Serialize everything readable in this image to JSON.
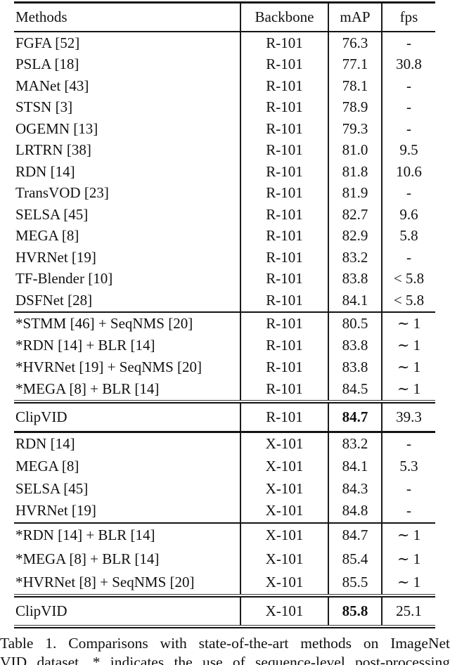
{
  "document": {
    "background": "#ffffff",
    "text_color": "#111111",
    "rule_color": "#141414"
  },
  "table": {
    "headers": {
      "methods": "Methods",
      "backbone": "Backbone",
      "map": "mAP",
      "fps": "fps"
    },
    "sections": [
      {
        "name": "r101-baselines",
        "rule_after": "single",
        "rows": [
          {
            "method": "FGFA [52]",
            "backbone": "R-101",
            "map": "76.3",
            "fps": "-"
          },
          {
            "method": "PSLA [18]",
            "backbone": "R-101",
            "map": "77.1",
            "fps": "30.8"
          },
          {
            "method": "MANet [43]",
            "backbone": "R-101",
            "map": "78.1",
            "fps": "-"
          },
          {
            "method": "STSN [3]",
            "backbone": "R-101",
            "map": "78.9",
            "fps": "-"
          },
          {
            "method": "OGEMN [13]",
            "backbone": "R-101",
            "map": "79.3",
            "fps": "-"
          },
          {
            "method": "LRTRN [38]",
            "backbone": "R-101",
            "map": "81.0",
            "fps": "9.5"
          },
          {
            "method": "RDN [14]",
            "backbone": "R-101",
            "map": "81.8",
            "fps": "10.6"
          },
          {
            "method": "TransVOD [23]",
            "backbone": "R-101",
            "map": "81.9",
            "fps": "-"
          },
          {
            "method": "SELSA [45]",
            "backbone": "R-101",
            "map": "82.7",
            "fps": "9.6"
          },
          {
            "method": "MEGA [8]",
            "backbone": "R-101",
            "map": "82.9",
            "fps": "5.8"
          },
          {
            "method": "HVRNet [19]",
            "backbone": "R-101",
            "map": "83.2",
            "fps": "-"
          },
          {
            "method": "TF-Blender [10]",
            "backbone": "R-101",
            "map": "83.8",
            "fps": "< 5.8"
          },
          {
            "method": "DSFNet [28]",
            "backbone": "R-101",
            "map": "84.1",
            "fps": "< 5.8"
          }
        ]
      },
      {
        "name": "r101-postprocessing",
        "rule_after": "double",
        "rows": [
          {
            "method": "*STMM [46] + SeqNMS [20]",
            "backbone": "R-101",
            "map": "80.5",
            "fps": "∼ 1"
          },
          {
            "method": "*RDN [14] + BLR [14]",
            "backbone": "R-101",
            "map": "83.8",
            "fps": "∼ 1"
          },
          {
            "method": "*HVRNet [19] + SeqNMS [20]",
            "backbone": "R-101",
            "map": "83.8",
            "fps": "∼ 1"
          },
          {
            "method": "*MEGA [8] + BLR [14]",
            "backbone": "R-101",
            "map": "84.5",
            "fps": "∼ 1"
          }
        ]
      },
      {
        "name": "clipvid-r101",
        "rule_after": "single",
        "rows": [
          {
            "method": "ClipVID",
            "backbone": "R-101",
            "map": "84.7",
            "fps": "39.3",
            "map_bold": true
          }
        ]
      },
      {
        "name": "x101-baselines",
        "rule_after": "single",
        "rows": [
          {
            "method": "RDN [14]",
            "backbone": "X-101",
            "map": "83.2",
            "fps": "-"
          },
          {
            "method": "MEGA [8]",
            "backbone": "X-101",
            "map": "84.1",
            "fps": "5.3"
          },
          {
            "method": "SELSA [45]",
            "backbone": "X-101",
            "map": "84.3",
            "fps": "-"
          },
          {
            "method": "HVRNet [19]",
            "backbone": "X-101",
            "map": "84.8",
            "fps": "-"
          }
        ]
      },
      {
        "name": "x101-postprocessing",
        "rule_after": "double",
        "rows": [
          {
            "method": "*RDN [14] + BLR [14]",
            "backbone": "X-101",
            "map": "84.7",
            "fps": "∼ 1"
          },
          {
            "method": "*MEGA [8] + BLR [14]",
            "backbone": "X-101",
            "map": "85.4",
            "fps": "∼ 1"
          },
          {
            "method": "*HVRNet [8] + SeqNMS [20]",
            "backbone": "X-101",
            "map": "85.5",
            "fps": "∼ 1"
          }
        ]
      },
      {
        "name": "clipvid-x101",
        "rule_after": "double",
        "rows": [
          {
            "method": "ClipVID",
            "backbone": "X-101",
            "map": "85.8",
            "fps": "25.1",
            "map_bold": true
          }
        ]
      }
    ]
  },
  "caption": {
    "line1": "Table 1. Comparisons with state-of-the-art methods on ImageNet",
    "line2": "VID dataset. * indicates the use of sequence-level post-processing"
  }
}
